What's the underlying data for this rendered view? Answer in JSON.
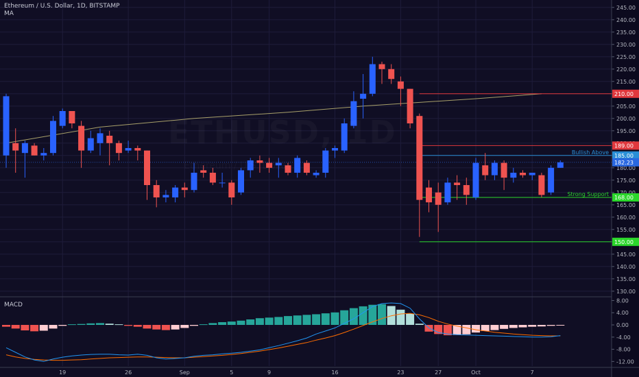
{
  "header": {
    "title": "Ethereum / U.S. Dollar, 1D, BITSTAMP",
    "ma_label": "MA",
    "macd_label": "MACD"
  },
  "watermark": {
    "symbol": "ETHUSD, 1D",
    "subtitle": "Ethereum / U.S. Dollar"
  },
  "colors": {
    "background": "#100e24",
    "up": "#2962ff",
    "down": "#ef5350",
    "ma_line": "#a8a06a",
    "grid": "#1e1c3a",
    "axis_text": "#b2b5be",
    "resistance": "#e0383d",
    "bullish": "#2a8fd6",
    "support": "#2bd62b",
    "last_price": "#2a68e0",
    "macd_line": "#2196f3",
    "signal_line": "#ff6d00",
    "hist_pos_strong": "#26a69a",
    "hist_pos_weak": "#b2dfdb",
    "hist_neg_strong": "#ef5350",
    "hist_neg_weak": "#ffcdd2"
  },
  "chart_data": [
    {
      "type": "candlestick",
      "title": "Ethereum / U.S. Dollar, 1D, BITSTAMP",
      "ylim": [
        128,
        248
      ],
      "y_ticks": [
        "245.00",
        "240.00",
        "235.00",
        "230.00",
        "225.00",
        "220.00",
        "215.00",
        "210.00",
        "205.00",
        "200.00",
        "195.00",
        "190.00",
        "185.00",
        "180.00",
        "175.00",
        "170.00",
        "165.00",
        "160.00",
        "155.00",
        "150.00",
        "145.00",
        "140.00",
        "135.00",
        "130.00"
      ],
      "x_ticks": [
        {
          "label": "19",
          "index": 6
        },
        {
          "label": "26",
          "index": 13
        },
        {
          "label": "Sep",
          "index": 19
        },
        {
          "label": "5",
          "index": 24
        },
        {
          "label": "9",
          "index": 28
        },
        {
          "label": "16",
          "index": 35
        },
        {
          "label": "23",
          "index": 42
        },
        {
          "label": "27",
          "index": 46
        },
        {
          "label": "Oct",
          "index": 50
        },
        {
          "label": "7",
          "index": 56
        }
      ],
      "candles": [
        {
          "o": 185.0,
          "h": 210.0,
          "l": 180.0,
          "c": 209.0
        },
        {
          "o": 190.0,
          "h": 196.0,
          "l": 178.0,
          "c": 187.0
        },
        {
          "o": 186.0,
          "h": 191.0,
          "l": 176.0,
          "c": 190.0
        },
        {
          "o": 189.0,
          "h": 190.0,
          "l": 185.0,
          "c": 185.0
        },
        {
          "o": 185.0,
          "h": 188.0,
          "l": 183.0,
          "c": 186.0
        },
        {
          "o": 186.0,
          "h": 201.0,
          "l": 185.0,
          "c": 199.0
        },
        {
          "o": 197.0,
          "h": 204.0,
          "l": 196.0,
          "c": 203.0
        },
        {
          "o": 203.0,
          "h": 203.0,
          "l": 196.0,
          "c": 198.0
        },
        {
          "o": 197.0,
          "h": 199.0,
          "l": 180.0,
          "c": 187.0
        },
        {
          "o": 187.0,
          "h": 195.0,
          "l": 186.0,
          "c": 192.0
        },
        {
          "o": 190.0,
          "h": 196.0,
          "l": 185.0,
          "c": 194.0
        },
        {
          "o": 193.0,
          "h": 195.0,
          "l": 181.0,
          "c": 190.0
        },
        {
          "o": 190.0,
          "h": 191.0,
          "l": 183.0,
          "c": 186.0
        },
        {
          "o": 187.0,
          "h": 191.0,
          "l": 186.0,
          "c": 188.0
        },
        {
          "o": 188.0,
          "h": 189.0,
          "l": 183.0,
          "c": 187.0
        },
        {
          "o": 187.0,
          "h": 187.0,
          "l": 167.0,
          "c": 173.0
        },
        {
          "o": 173.0,
          "h": 175.0,
          "l": 164.0,
          "c": 168.0
        },
        {
          "o": 168.0,
          "h": 171.0,
          "l": 166.0,
          "c": 169.0
        },
        {
          "o": 168.0,
          "h": 173.0,
          "l": 166.0,
          "c": 172.0
        },
        {
          "o": 172.0,
          "h": 174.0,
          "l": 168.0,
          "c": 171.0
        },
        {
          "o": 171.0,
          "h": 182.0,
          "l": 170.0,
          "c": 178.0
        },
        {
          "o": 179.0,
          "h": 181.0,
          "l": 176.0,
          "c": 178.0
        },
        {
          "o": 178.0,
          "h": 180.0,
          "l": 173.0,
          "c": 174.0
        },
        {
          "o": 174.0,
          "h": 178.0,
          "l": 172.0,
          "c": 174.0
        },
        {
          "o": 174.0,
          "h": 175.0,
          "l": 165.0,
          "c": 168.0
        },
        {
          "o": 170.0,
          "h": 180.0,
          "l": 169.0,
          "c": 179.0
        },
        {
          "o": 179.0,
          "h": 184.0,
          "l": 176.0,
          "c": 183.0
        },
        {
          "o": 183.0,
          "h": 185.0,
          "l": 178.0,
          "c": 182.0
        },
        {
          "o": 182.0,
          "h": 184.0,
          "l": 178.0,
          "c": 180.0
        },
        {
          "o": 181.0,
          "h": 184.0,
          "l": 176.0,
          "c": 182.0
        },
        {
          "o": 181.0,
          "h": 182.0,
          "l": 177.0,
          "c": 178.0
        },
        {
          "o": 178.0,
          "h": 185.0,
          "l": 176.0,
          "c": 184.0
        },
        {
          "o": 182.0,
          "h": 183.0,
          "l": 177.0,
          "c": 178.0
        },
        {
          "o": 177.0,
          "h": 179.0,
          "l": 176.0,
          "c": 178.0
        },
        {
          "o": 178.0,
          "h": 188.0,
          "l": 176.0,
          "c": 187.0
        },
        {
          "o": 187.0,
          "h": 189.0,
          "l": 184.0,
          "c": 188.0
        },
        {
          "o": 187.0,
          "h": 200.0,
          "l": 186.0,
          "c": 198.0
        },
        {
          "o": 197.0,
          "h": 211.0,
          "l": 196.0,
          "c": 207.0
        },
        {
          "o": 208.0,
          "h": 218.0,
          "l": 200.0,
          "c": 210.0
        },
        {
          "o": 210.0,
          "h": 225.0,
          "l": 209.0,
          "c": 222.0
        },
        {
          "o": 222.0,
          "h": 223.0,
          "l": 214.0,
          "c": 220.0
        },
        {
          "o": 220.0,
          "h": 222.0,
          "l": 214.0,
          "c": 216.0
        },
        {
          "o": 215.0,
          "h": 217.0,
          "l": 205.0,
          "c": 212.0
        },
        {
          "o": 212.0,
          "h": 212.0,
          "l": 196.0,
          "c": 198.0
        },
        {
          "o": 201.0,
          "h": 202.0,
          "l": 152.0,
          "c": 167.0
        },
        {
          "o": 172.0,
          "h": 175.0,
          "l": 162.0,
          "c": 166.0
        },
        {
          "o": 170.0,
          "h": 174.0,
          "l": 154.0,
          "c": 165.0
        },
        {
          "o": 166.0,
          "h": 176.0,
          "l": 165.0,
          "c": 174.0
        },
        {
          "o": 174.0,
          "h": 177.0,
          "l": 167.0,
          "c": 173.0
        },
        {
          "o": 173.0,
          "h": 176.0,
          "l": 165.0,
          "c": 169.0
        },
        {
          "o": 168.0,
          "h": 184.0,
          "l": 167.0,
          "c": 182.0
        },
        {
          "o": 181.0,
          "h": 186.0,
          "l": 175.0,
          "c": 177.0
        },
        {
          "o": 177.0,
          "h": 183.0,
          "l": 175.0,
          "c": 182.0
        },
        {
          "o": 182.0,
          "h": 183.0,
          "l": 171.0,
          "c": 176.0
        },
        {
          "o": 176.0,
          "h": 180.0,
          "l": 174.0,
          "c": 178.0
        },
        {
          "o": 178.0,
          "h": 179.0,
          "l": 176.0,
          "c": 177.0
        },
        {
          "o": 177.0,
          "h": 178.0,
          "l": 175.0,
          "c": 178.0
        },
        {
          "o": 177.0,
          "h": 178.0,
          "l": 168.0,
          "c": 169.0
        },
        {
          "o": 170.0,
          "h": 181.0,
          "l": 169.0,
          "c": 180.0
        },
        {
          "o": 180.0,
          "h": 183.0,
          "l": 180.0,
          "c": 182.2
        }
      ],
      "ma_points": [
        {
          "i": 0,
          "v": 190.0
        },
        {
          "i": 10,
          "v": 196.5
        },
        {
          "i": 20,
          "v": 200.0
        },
        {
          "i": 30,
          "v": 202.5
        },
        {
          "i": 38,
          "v": 205.0
        },
        {
          "i": 44,
          "v": 206.5
        },
        {
          "i": 50,
          "v": 208.0
        },
        {
          "i": 57,
          "v": 210.0
        }
      ],
      "levels": [
        {
          "price": 210.0,
          "label": "210.00",
          "note": "",
          "color": "#e0383d",
          "from_index": 44
        },
        {
          "price": 189.0,
          "label": "189.00",
          "note": "",
          "color": "#e0383d",
          "from_index": 44
        },
        {
          "price": 185.0,
          "label": "185.00",
          "note": "Bullish Above",
          "color": "#2a8fd6",
          "from_index": 44
        },
        {
          "price": 168.0,
          "label": "168.00",
          "note": "Strong Support",
          "color": "#2bd62b",
          "from_index": 44
        },
        {
          "price": 150.0,
          "label": "150.00",
          "note": "",
          "color": "#2bd62b",
          "from_index": 44
        }
      ],
      "last_price": {
        "price": 182.23,
        "label": "182.23"
      }
    },
    {
      "type": "bar",
      "title": "MACD",
      "ylim": [
        -13.5,
        9
      ],
      "y_ticks": [
        "8.00",
        "4.00",
        "0.00",
        "-4.00",
        "-8.00",
        "-12.00"
      ],
      "histogram": [
        -0.6,
        -1.2,
        -1.8,
        -2.1,
        -1.9,
        -1.2,
        -0.3,
        0.2,
        0.3,
        0.5,
        0.6,
        0.4,
        0.2,
        -0.3,
        -0.6,
        -1.2,
        -1.5,
        -1.7,
        -1.5,
        -1.0,
        -0.3,
        0.2,
        0.6,
        0.9,
        1.1,
        1.4,
        1.8,
        2.2,
        2.4,
        2.6,
        2.9,
        3.1,
        3.3,
        3.5,
        3.8,
        4.1,
        4.8,
        5.5,
        6.1,
        6.6,
        6.8,
        6.2,
        5.0,
        3.7,
        0.4,
        -2.2,
        -3.0,
        -3.4,
        -3.3,
        -3.1,
        -2.5,
        -2.0,
        -1.7,
        -1.3,
        -1.0,
        -0.8,
        -0.6,
        -0.5,
        -0.3,
        -0.2
      ],
      "macd": [
        -7.5,
        -9.0,
        -10.5,
        -11.5,
        -12.0,
        -11.2,
        -10.6,
        -10.2,
        -9.9,
        -9.7,
        -9.6,
        -9.6,
        -9.8,
        -9.9,
        -9.6,
        -10.0,
        -10.8,
        -11.2,
        -11.0,
        -10.8,
        -10.3,
        -10.0,
        -9.8,
        -9.5,
        -9.3,
        -9.0,
        -8.6,
        -8.2,
        -7.5,
        -6.8,
        -6.0,
        -5.2,
        -4.3,
        -3.0,
        -2.0,
        -1.0,
        0.5,
        2.0,
        4.0,
        6.0,
        7.0,
        7.2,
        7.0,
        5.5,
        2.0,
        -1.0,
        -2.5,
        -3.0,
        -3.2,
        -3.3,
        -3.4,
        -3.5,
        -3.6,
        -3.7,
        -3.8,
        -3.9,
        -4.0,
        -4.0,
        -3.9,
        -3.5
      ],
      "signal": [
        -9.8,
        -10.5,
        -11.0,
        -11.3,
        -11.5,
        -11.6,
        -11.6,
        -11.5,
        -11.4,
        -11.2,
        -11.0,
        -10.8,
        -10.7,
        -10.6,
        -10.5,
        -10.5,
        -10.6,
        -10.7,
        -10.8,
        -10.8,
        -10.6,
        -10.4,
        -10.2,
        -10.0,
        -9.7,
        -9.4,
        -9.0,
        -8.6,
        -8.1,
        -7.6,
        -7.0,
        -6.4,
        -5.8,
        -5.0,
        -4.3,
        -3.5,
        -2.5,
        -1.4,
        -0.2,
        1.0,
        2.1,
        3.0,
        3.6,
        3.8,
        3.3,
        2.4,
        1.2,
        0.3,
        -0.4,
        -1.0,
        -1.6,
        -2.0,
        -2.4,
        -2.7,
        -3.0,
        -3.2,
        -3.4,
        -3.5,
        -3.6,
        -3.6
      ]
    }
  ]
}
